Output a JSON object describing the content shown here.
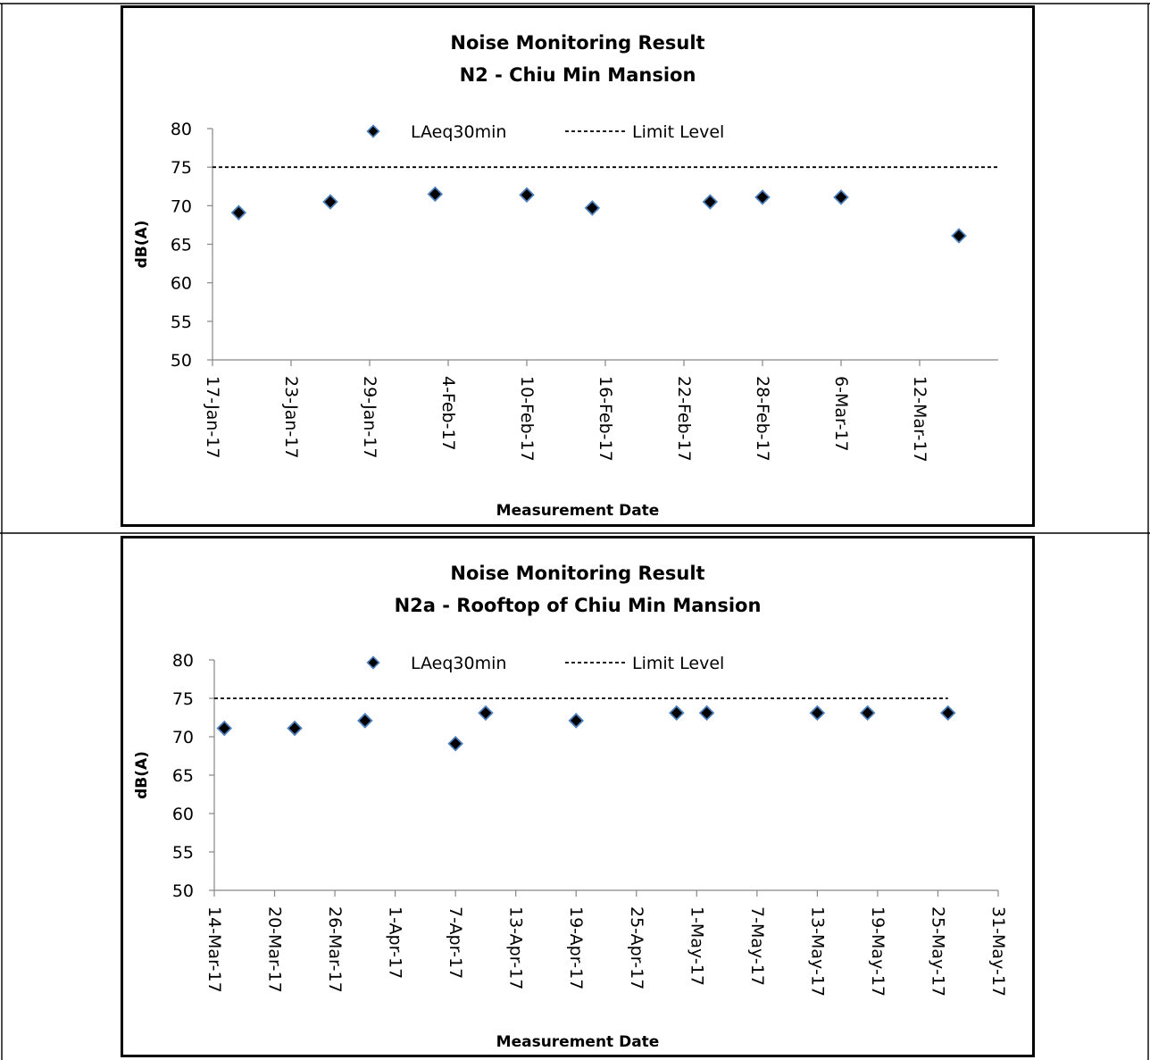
{
  "chart_data": [
    {
      "type": "scatter",
      "title": "Noise Monitoring Result",
      "subtitle": "N2 - Chiu Min Mansion",
      "xlabel": "Measurement Date",
      "ylabel": "dB(A)",
      "ylim": [
        50,
        80
      ],
      "yticks": [
        "50",
        "55",
        "60",
        "65",
        "70",
        "75",
        "80"
      ],
      "xlim": [
        "2017-01-17",
        "2017-03-18"
      ],
      "xticks": [
        {
          "date": "2017-01-17",
          "label": "17-Jan-17"
        },
        {
          "date": "2017-01-23",
          "label": "23-Jan-17"
        },
        {
          "date": "2017-01-29",
          "label": "29-Jan-17"
        },
        {
          "date": "2017-02-04",
          "label": "4-Feb-17"
        },
        {
          "date": "2017-02-10",
          "label": "10-Feb-17"
        },
        {
          "date": "2017-02-16",
          "label": "16-Feb-17"
        },
        {
          "date": "2017-02-22",
          "label": "22-Feb-17"
        },
        {
          "date": "2017-02-28",
          "label": "28-Feb-17"
        },
        {
          "date": "2017-03-06",
          "label": "6-Mar-17"
        },
        {
          "date": "2017-03-12",
          "label": "12-Mar-17"
        }
      ],
      "legend_placement": "top",
      "series": [
        {
          "name": "LAeq30min",
          "points": [
            {
              "x": "2017-01-19",
              "y": 69.1
            },
            {
              "x": "2017-01-26",
              "y": 70.5
            },
            {
              "x": "2017-02-03",
              "y": 71.5
            },
            {
              "x": "2017-02-10",
              "y": 71.4
            },
            {
              "x": "2017-02-15",
              "y": 69.7
            },
            {
              "x": "2017-02-24",
              "y": 70.5
            },
            {
              "x": "2017-02-28",
              "y": 71.1
            },
            {
              "x": "2017-03-06",
              "y": 71.1
            },
            {
              "x": "2017-03-15",
              "y": 66.1
            }
          ]
        },
        {
          "name": "Limit Level",
          "points": [
            {
              "x": "2017-01-17",
              "y": 75
            },
            {
              "x": "2017-03-18",
              "y": 75
            }
          ]
        }
      ]
    },
    {
      "type": "scatter",
      "title": "Noise Monitoring Result",
      "subtitle": "N2a - Rooftop of Chiu Min Mansion",
      "xlabel": "Measurement Date",
      "ylabel": "dB(A)",
      "ylim": [
        50,
        80
      ],
      "yticks": [
        "50",
        "55",
        "60",
        "65",
        "70",
        "75",
        "80"
      ],
      "xlim": [
        "2017-03-14",
        "2017-05-31"
      ],
      "xticks": [
        {
          "date": "2017-03-14",
          "label": "14-Mar-17"
        },
        {
          "date": "2017-03-20",
          "label": "20-Mar-17"
        },
        {
          "date": "2017-03-26",
          "label": "26-Mar-17"
        },
        {
          "date": "2017-04-01",
          "label": "1-Apr-17"
        },
        {
          "date": "2017-04-07",
          "label": "7-Apr-17"
        },
        {
          "date": "2017-04-13",
          "label": "13-Apr-17"
        },
        {
          "date": "2017-04-19",
          "label": "19-Apr-17"
        },
        {
          "date": "2017-04-25",
          "label": "25-Apr-17"
        },
        {
          "date": "2017-05-01",
          "label": "1-May-17"
        },
        {
          "date": "2017-05-07",
          "label": "7-May-17"
        },
        {
          "date": "2017-05-13",
          "label": "13-May-17"
        },
        {
          "date": "2017-05-19",
          "label": "19-May-17"
        },
        {
          "date": "2017-05-25",
          "label": "25-May-17"
        },
        {
          "date": "2017-05-31",
          "label": "31-May-17"
        }
      ],
      "legend_placement": "top",
      "series": [
        {
          "name": "LAeq30min",
          "points": [
            {
              "x": "2017-03-15",
              "y": 71.1
            },
            {
              "x": "2017-03-22",
              "y": 71.1
            },
            {
              "x": "2017-03-29",
              "y": 72.1
            },
            {
              "x": "2017-04-07",
              "y": 69.1
            },
            {
              "x": "2017-04-10",
              "y": 73.1
            },
            {
              "x": "2017-04-19",
              "y": 72.1
            },
            {
              "x": "2017-04-29",
              "y": 73.1
            },
            {
              "x": "2017-05-02",
              "y": 73.1
            },
            {
              "x": "2017-05-13",
              "y": 73.1
            },
            {
              "x": "2017-05-18",
              "y": 73.1
            },
            {
              "x": "2017-05-26",
              "y": 73.1
            }
          ]
        },
        {
          "name": "Limit Level",
          "points": [
            {
              "x": "2017-03-14",
              "y": 75
            },
            {
              "x": "2017-05-26",
              "y": 75
            }
          ]
        }
      ]
    }
  ]
}
